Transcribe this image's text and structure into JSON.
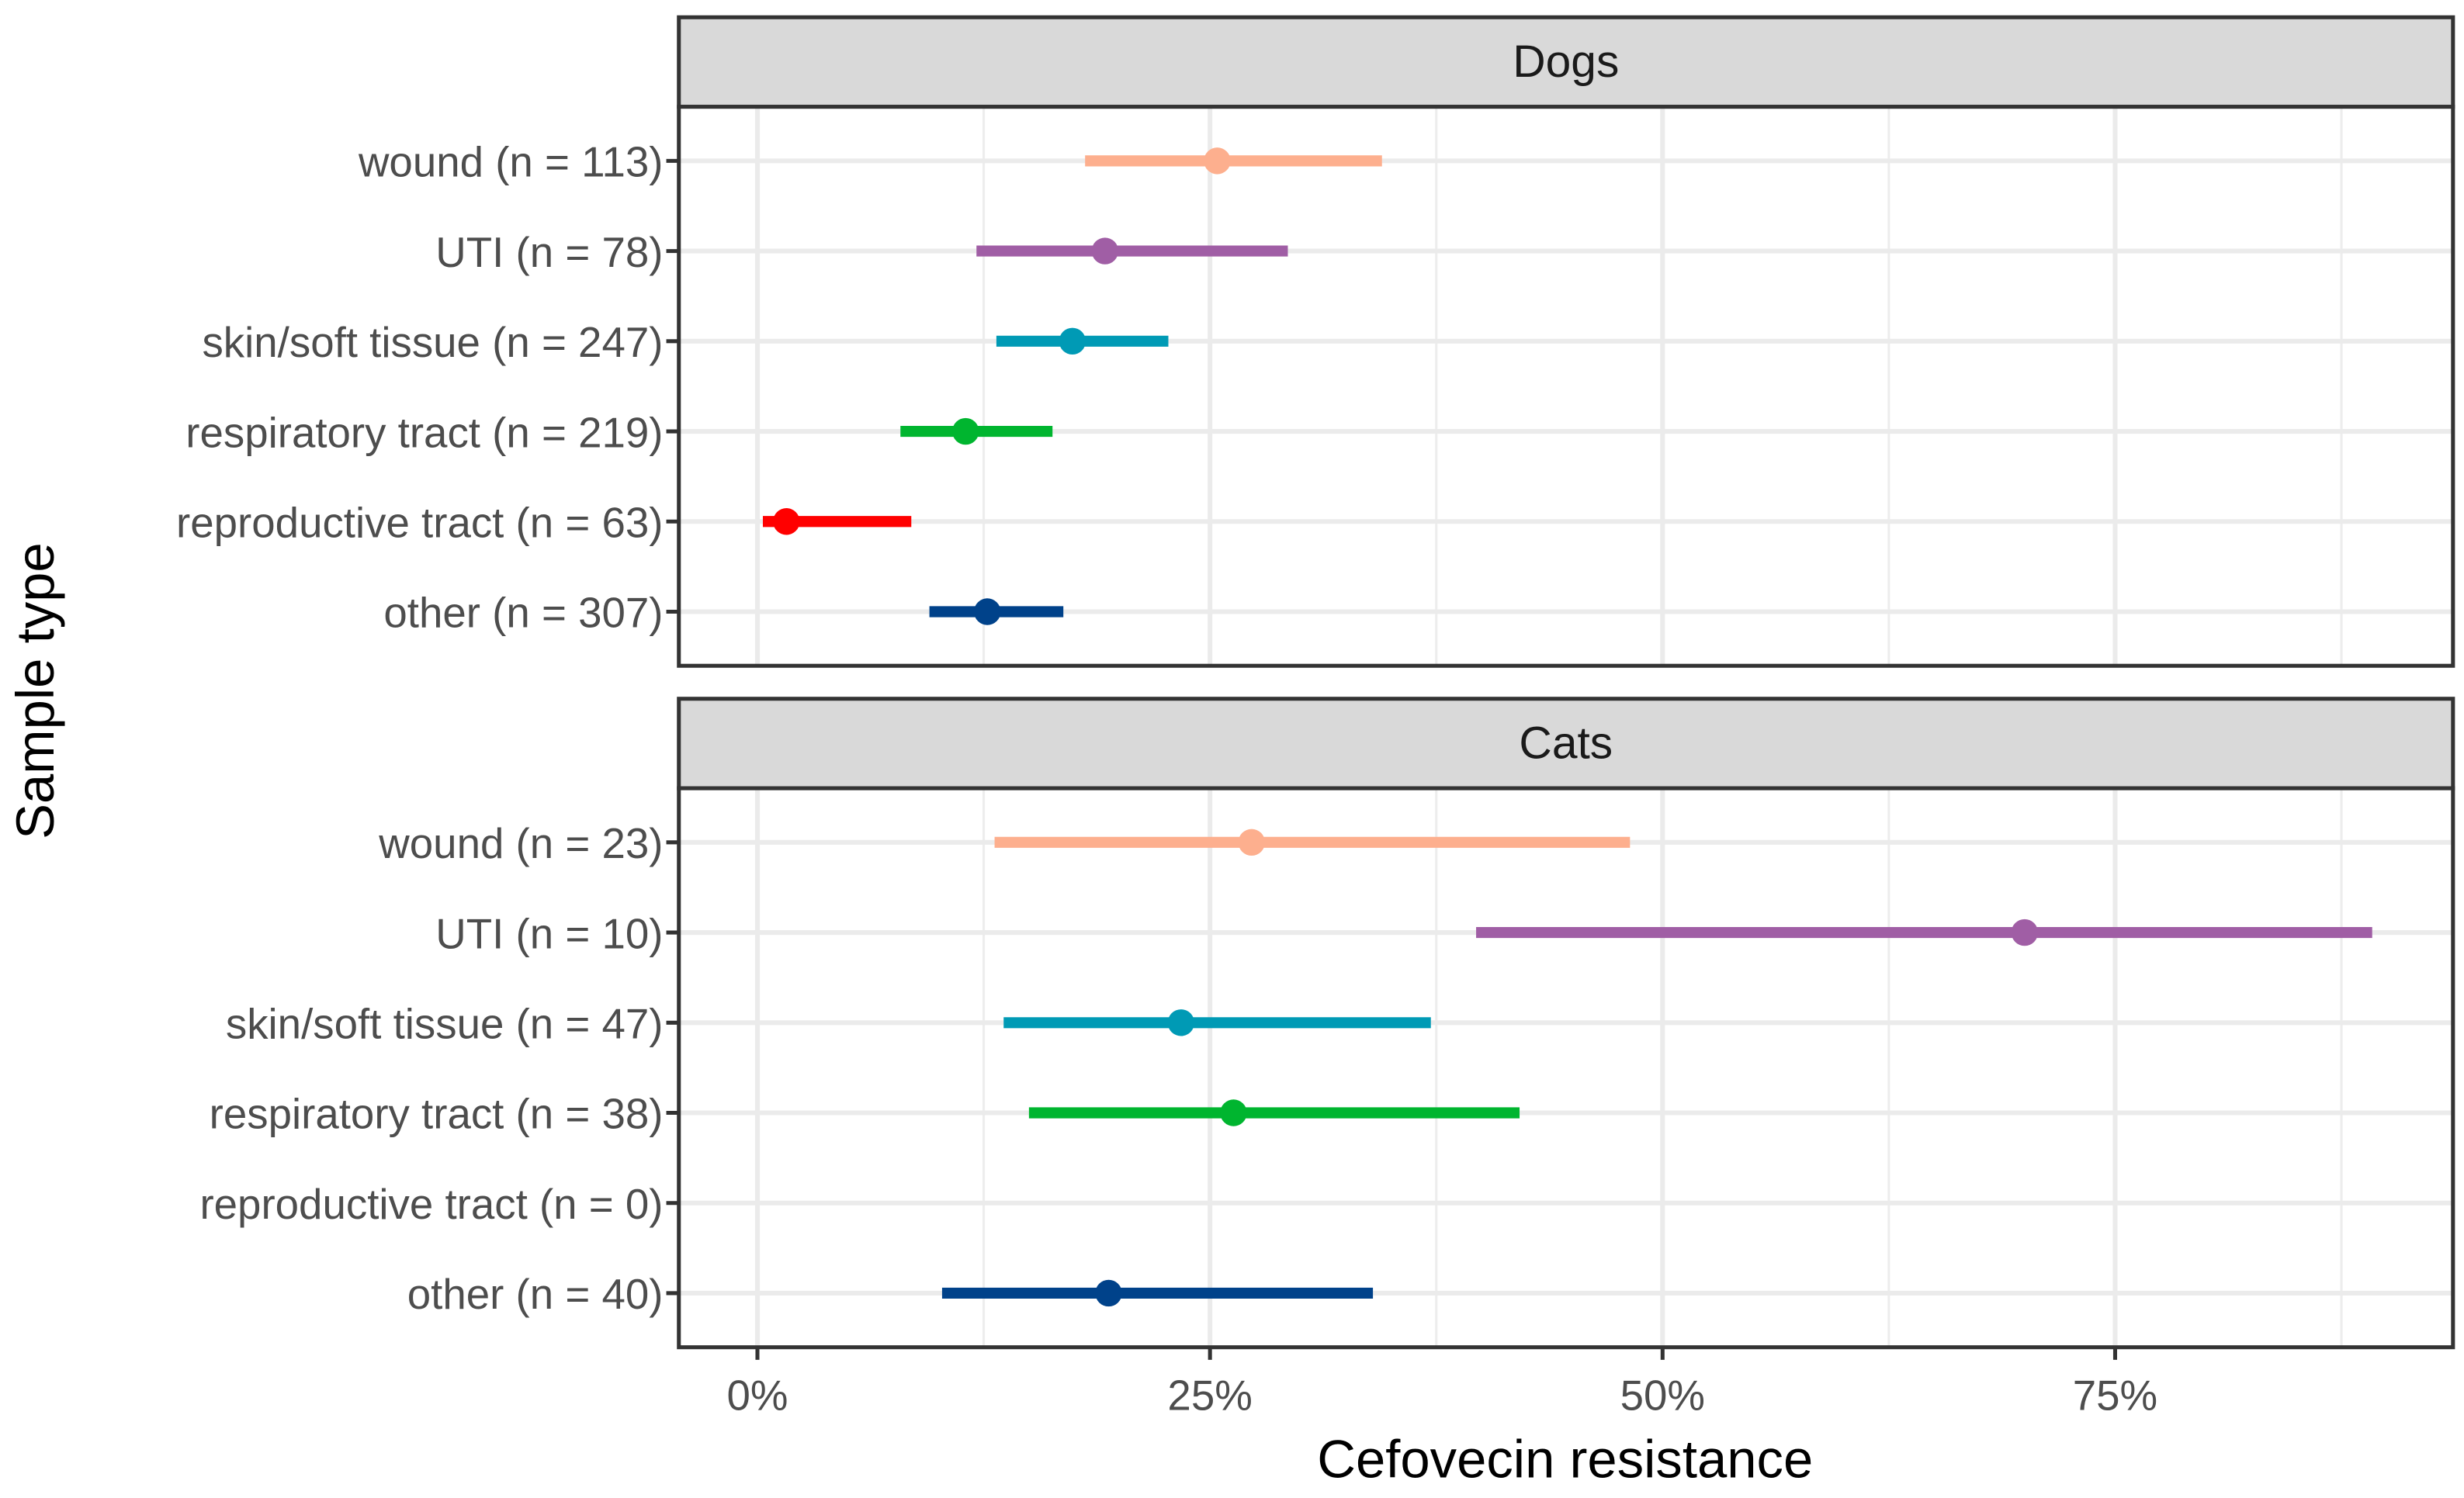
{
  "chart_data": {
    "type": "forest",
    "xlabel": "Cefovecin resistance",
    "ylabel": "Sample type",
    "xlim": [
      -4,
      94
    ],
    "xticks": [
      0,
      25,
      50,
      75
    ],
    "xtick_labels": [
      "0%",
      "25%",
      "50%",
      "75%"
    ],
    "grid": true,
    "colors": {
      "wound": "#FDAF8E",
      "UTI": "#A05EA5",
      "skin/soft tissue": "#009AB5",
      "respiratory tract": "#00B52F",
      "reproductive tract": "#FF0000",
      "other": "#00428A"
    },
    "panels": [
      {
        "title": "Dogs",
        "rows": [
          {
            "category": "wound",
            "label": "wound (n = 113)",
            "estimate": 25.4,
            "lower": 18.1,
            "upper": 34.5
          },
          {
            "category": "UTI",
            "label": "UTI (n = 78)",
            "estimate": 19.2,
            "lower": 12.1,
            "upper": 29.3
          },
          {
            "category": "skin/soft tissue",
            "label": "skin/soft tissue (n = 247)",
            "estimate": 17.4,
            "lower": 13.2,
            "upper": 22.7
          },
          {
            "category": "respiratory tract",
            "label": "respiratory tract (n = 219)",
            "estimate": 11.5,
            "lower": 7.9,
            "upper": 16.3
          },
          {
            "category": "reproductive tract",
            "label": "reproductive tract (n = 63)",
            "estimate": 1.6,
            "lower": 0.3,
            "upper": 8.5
          },
          {
            "category": "other",
            "label": "other (n = 307)",
            "estimate": 12.7,
            "lower": 9.5,
            "upper": 16.9
          }
        ]
      },
      {
        "title": "Cats",
        "rows": [
          {
            "category": "wound",
            "label": "wound (n = 23)",
            "estimate": 27.3,
            "lower": 13.1,
            "upper": 48.2
          },
          {
            "category": "UTI",
            "label": "UTI (n = 10)",
            "estimate": 70.0,
            "lower": 39.7,
            "upper": 89.2
          },
          {
            "category": "skin/soft tissue",
            "label": "skin/soft tissue (n = 47)",
            "estimate": 23.4,
            "lower": 13.6,
            "upper": 37.2
          },
          {
            "category": "respiratory tract",
            "label": "respiratory tract (n = 38)",
            "estimate": 26.3,
            "lower": 15.0,
            "upper": 42.1
          },
          {
            "category": "reproductive tract",
            "label": "reproductive tract (n = 0)",
            "estimate": null,
            "lower": null,
            "upper": null
          },
          {
            "category": "other",
            "label": "other (n = 40)",
            "estimate": 19.4,
            "lower": 10.2,
            "upper": 34.0
          }
        ]
      }
    ]
  }
}
